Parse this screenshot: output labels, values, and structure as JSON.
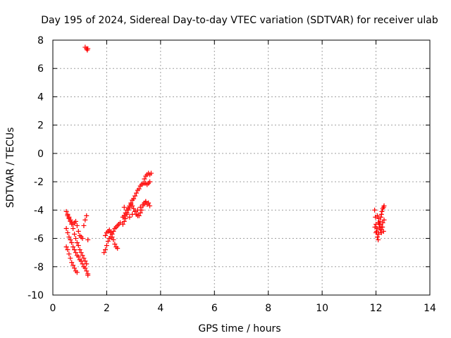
{
  "chart_data": {
    "type": "scatter",
    "title": "Day 195 of 2024, Sidereal Day-to-day VTEC variation (SDTVAR) for receiver ulab",
    "xlabel": "GPS time / hours",
    "ylabel": "SDTVAR / TECUs",
    "xlim": [
      0,
      14
    ],
    "ylim": [
      -10,
      8
    ],
    "xticks": [
      "0",
      "2",
      "4",
      "6",
      "8",
      "10",
      "12",
      "14"
    ],
    "yticks": [
      "8",
      "6",
      "4",
      "2",
      "0",
      "-2",
      "-4",
      "-6",
      "-8",
      "-10"
    ],
    "grid": true,
    "marker": "plus",
    "color": "#ff0000",
    "series": [
      {
        "x": [
          0.5,
          0.55,
          0.6,
          0.65,
          0.7,
          0.75,
          0.8,
          0.85,
          0.9,
          0.95,
          1.0,
          1.05,
          1.1,
          1.15,
          1.2,
          1.25,
          1.3,
          0.5,
          0.55,
          0.6,
          0.65,
          0.7,
          0.75,
          0.8,
          0.85,
          0.9,
          0.95,
          1.0,
          1.05,
          1.1,
          1.15,
          1.2,
          1.25,
          1.3,
          0.55,
          0.6,
          0.65,
          0.7,
          0.75,
          0.8,
          0.85,
          0.9,
          0.95,
          1.0,
          1.05,
          1.1,
          1.15,
          1.2,
          1.25,
          1.3,
          0.5,
          0.55,
          0.6,
          0.65,
          0.7,
          0.75,
          0.8,
          0.85,
          0.9,
          1.2,
          1.25,
          1.28,
          1.3
        ],
        "y": [
          -4.1,
          -4.3,
          -4.5,
          -4.7,
          -5.0,
          -5.3,
          -5.7,
          -6.0,
          -6.3,
          -6.5,
          -6.8,
          -7.0,
          -7.2,
          -7.4,
          -7.6,
          -7.8,
          -8.5,
          -5.3,
          -5.6,
          -5.9,
          -6.1,
          -6.3,
          -6.6,
          -6.8,
          -7.0,
          -7.2,
          -7.3,
          -7.5,
          -7.6,
          -7.8,
          -8.0,
          -8.1,
          -8.3,
          -8.6,
          -4.4,
          -4.6,
          -4.8,
          -4.9,
          -5.0,
          -4.9,
          -4.8,
          -5.1,
          -5.5,
          -5.8,
          -5.9,
          -6.0,
          -5.1,
          -4.7,
          -4.4,
          -6.1,
          -6.6,
          -6.8,
          -7.1,
          -7.4,
          -7.7,
          -7.9,
          -8.1,
          -8.3,
          -8.4,
          7.5,
          7.4,
          7.3,
          7.4
        ]
      },
      {
        "x": [
          1.9,
          1.95,
          2.0,
          2.05,
          2.1,
          2.15,
          2.2,
          2.25,
          2.3,
          2.35,
          2.4,
          2.45,
          2.5,
          1.95,
          2.0,
          2.05,
          2.1,
          2.15,
          2.2,
          2.25,
          2.3,
          2.35,
          2.4,
          2.6,
          2.65,
          2.7,
          2.75,
          2.8,
          2.85,
          2.9,
          2.95,
          3.0,
          3.05,
          3.1,
          3.15,
          3.2,
          3.25,
          3.3,
          3.35,
          3.4,
          3.45,
          3.5,
          3.55,
          3.6,
          2.6,
          2.65,
          2.7,
          2.75,
          2.8,
          2.85,
          2.9,
          2.95,
          3.0,
          3.05,
          3.1,
          3.15,
          3.2,
          3.25,
          3.3,
          3.35,
          3.4,
          3.45,
          3.5,
          2.65,
          2.75,
          2.85,
          2.95,
          3.05,
          3.15,
          3.25,
          3.35,
          3.45,
          3.55,
          3.6,
          3.4,
          3.45,
          3.5,
          3.55,
          3.6,
          3.65
        ],
        "y": [
          -7.0,
          -6.8,
          -6.5,
          -6.2,
          -6.0,
          -5.9,
          -5.7,
          -5.5,
          -5.3,
          -5.2,
          -5.1,
          -5.0,
          -4.9,
          -5.8,
          -5.6,
          -5.5,
          -5.4,
          -5.6,
          -5.9,
          -6.1,
          -6.4,
          -6.6,
          -6.7,
          -5.0,
          -4.8,
          -4.6,
          -4.3,
          -4.0,
          -3.7,
          -3.5,
          -3.3,
          -3.2,
          -3.0,
          -2.8,
          -2.6,
          -2.5,
          -2.3,
          -2.2,
          -2.1,
          -2.1,
          -2.1,
          -2.2,
          -2.1,
          -2.0,
          -4.5,
          -4.4,
          -4.2,
          -4.0,
          -3.9,
          -3.8,
          -3.6,
          -3.7,
          -3.9,
          -4.1,
          -4.3,
          -4.4,
          -4.4,
          -4.2,
          -4.0,
          -3.7,
          -3.5,
          -3.4,
          -3.6,
          -3.8,
          -4.2,
          -4.5,
          -4.3,
          -4.1,
          -4.0,
          -3.8,
          -3.6,
          -3.4,
          -3.5,
          -3.7,
          -1.8,
          -1.6,
          -1.5,
          -1.4,
          -1.5,
          -1.4
        ]
      },
      {
        "x": [
          11.95,
          11.98,
          12.0,
          12.02,
          12.05,
          12.08,
          12.1,
          12.12,
          12.15,
          12.18,
          12.2,
          12.22,
          12.25,
          12.28,
          12.3,
          11.96,
          12.0,
          12.04,
          12.08,
          12.12,
          12.16,
          12.2,
          12.24,
          12.28,
          12.05,
          12.1,
          12.15,
          12.2,
          12.25,
          12.3
        ],
        "y": [
          -4.0,
          -4.5,
          -5.0,
          -5.5,
          -5.9,
          -6.1,
          -5.7,
          -5.2,
          -4.8,
          -4.5,
          -4.3,
          -4.1,
          -3.9,
          -3.8,
          -3.7,
          -5.2,
          -5.6,
          -5.3,
          -4.9,
          -5.0,
          -5.4,
          -5.6,
          -5.2,
          -5.5,
          -4.4,
          -4.6,
          -5.0,
          -5.2,
          -4.9,
          -4.7
        ]
      }
    ]
  }
}
